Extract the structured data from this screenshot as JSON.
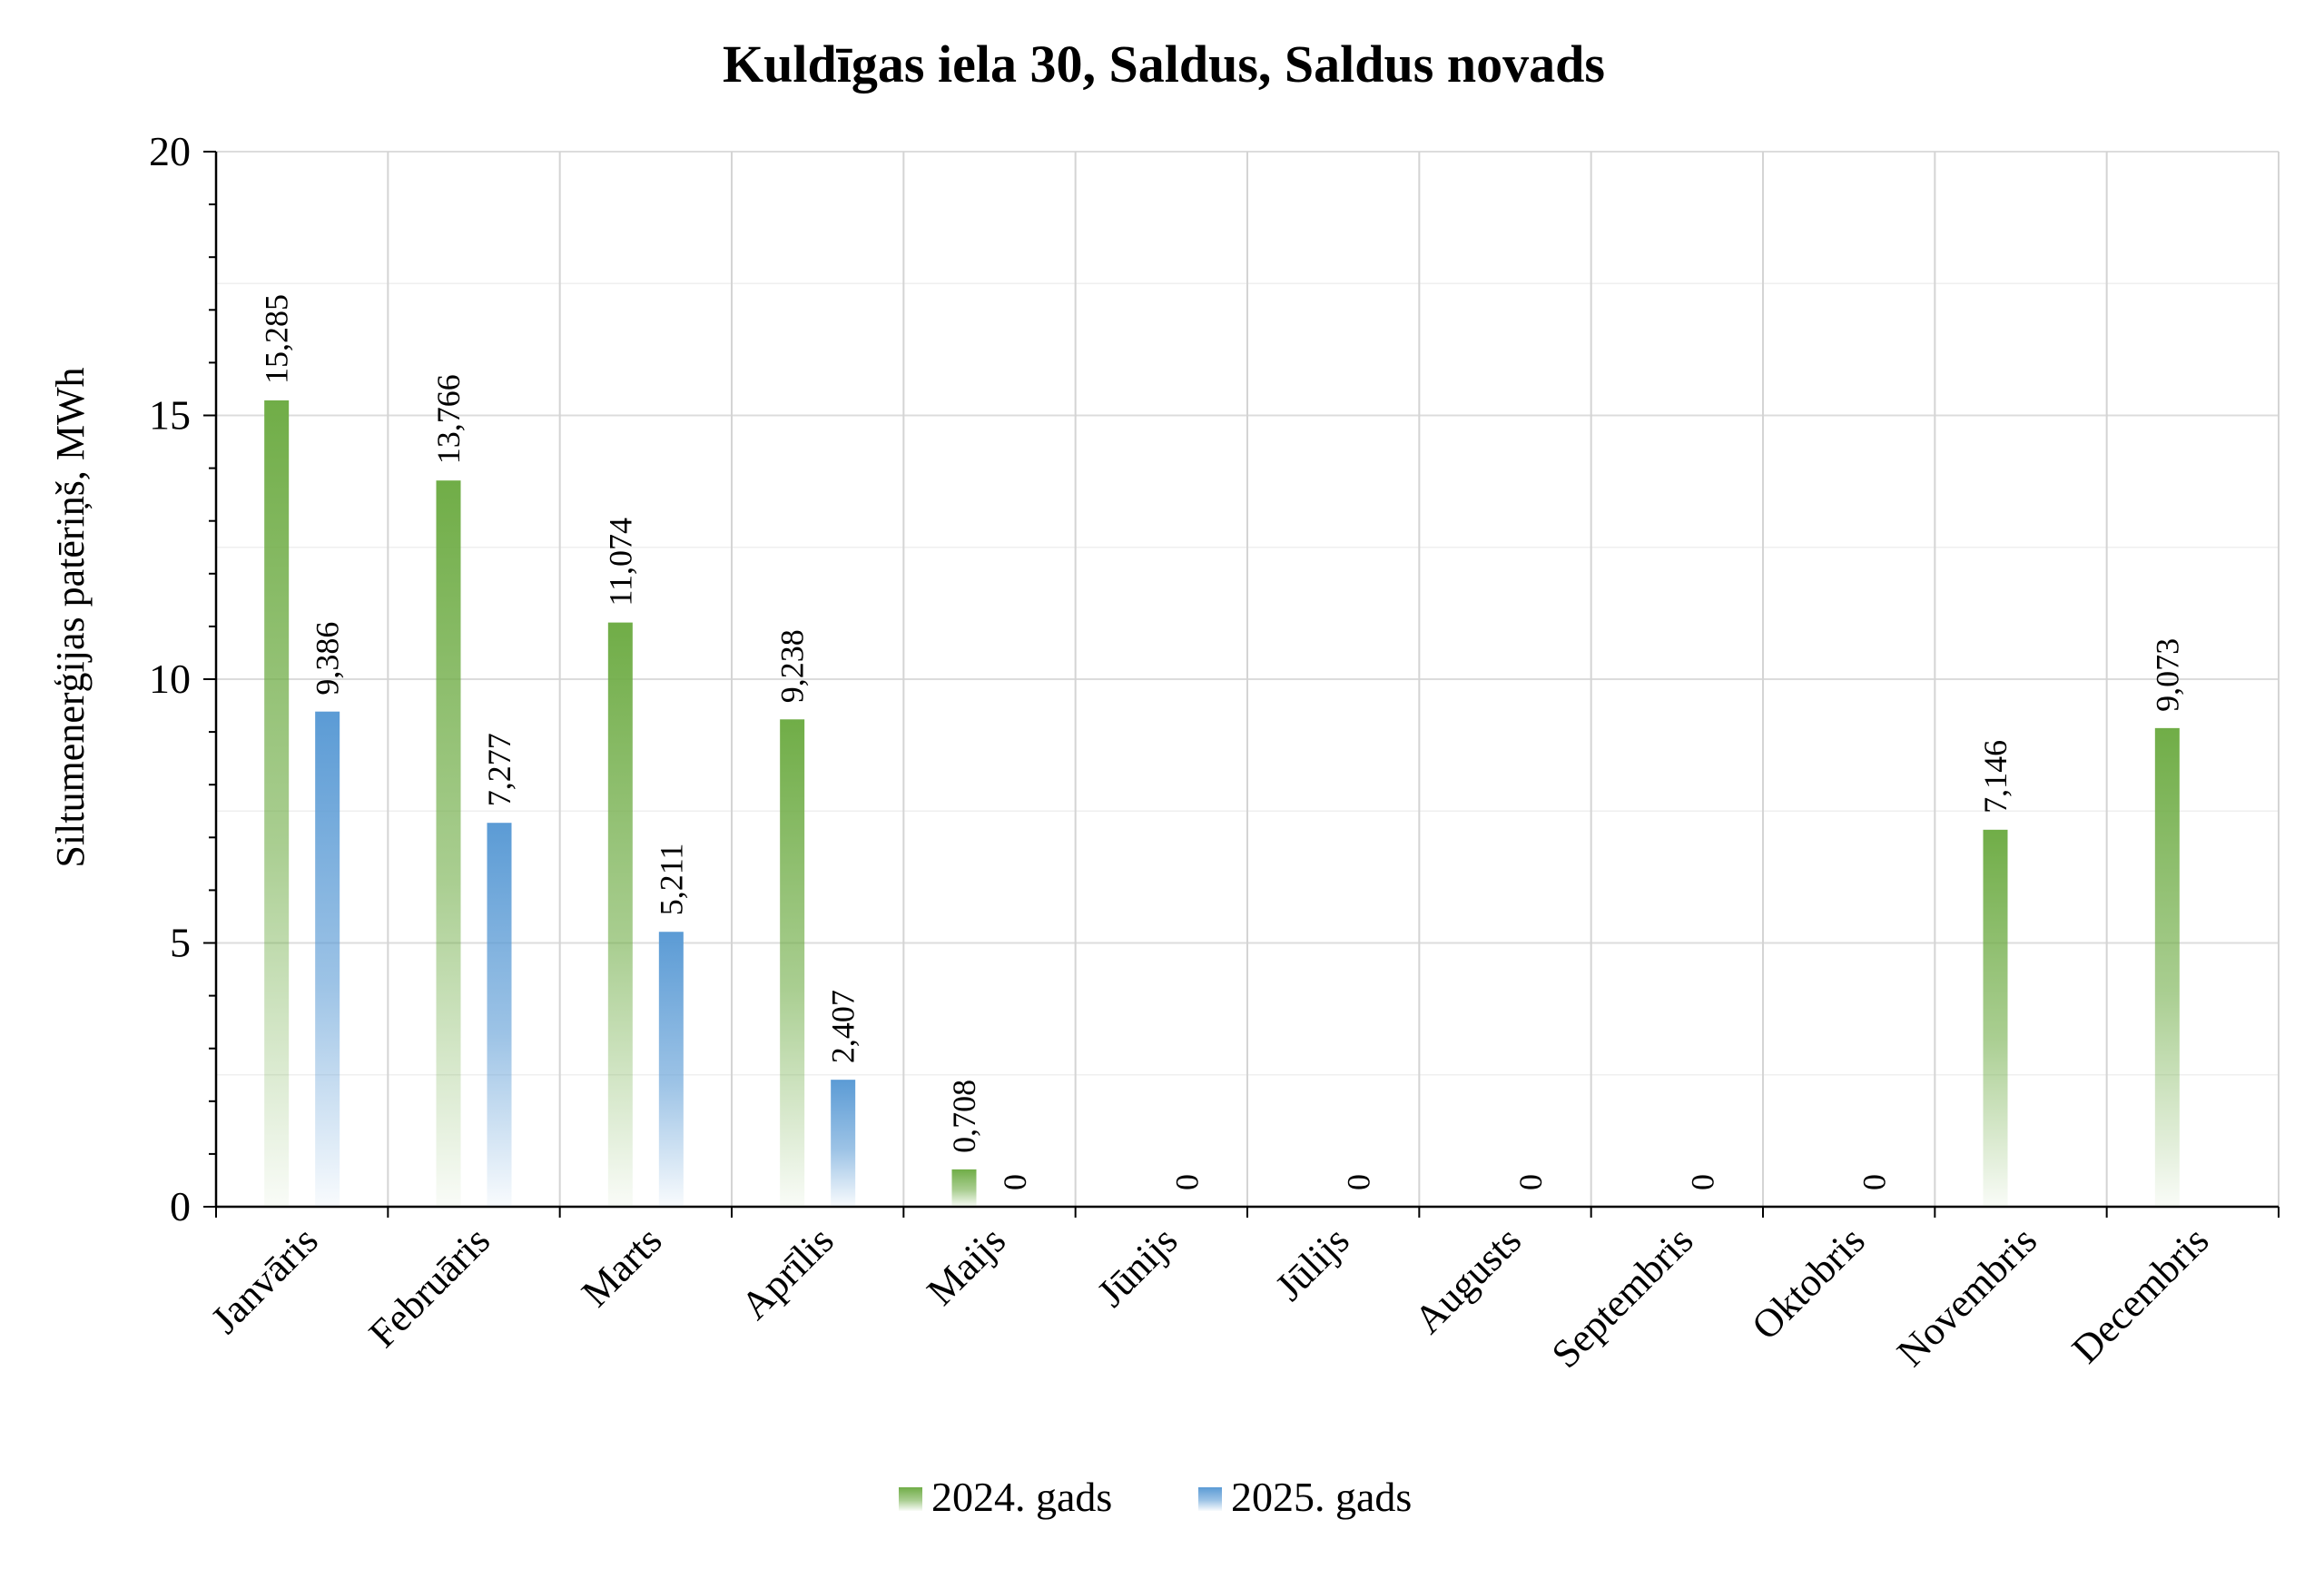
{
  "chart_data": {
    "type": "bar",
    "title": "Kuldīgas iela 30, Saldus, Saldus novads",
    "ylabel": "Siltumenerģijas patēriņš, MWh",
    "xlabel": "",
    "ylim": [
      0,
      20
    ],
    "yticks": [
      0,
      5,
      10,
      15,
      20
    ],
    "grid": true,
    "legend_position": "bottom",
    "categories": [
      "Janvāris",
      "Februāris",
      "Marts",
      "Aprīlis",
      "Maijs",
      "Jūnijs",
      "Jūlijs",
      "Augusts",
      "Septembris",
      "Oktobris",
      "Novembris",
      "Decembris"
    ],
    "series": [
      {
        "name": "2024. gads",
        "color": "#70ad47",
        "values": [
          15.285,
          13.766,
          11.074,
          9.238,
          0.708,
          null,
          null,
          null,
          null,
          null,
          7.146,
          9.073
        ],
        "labels": [
          "15,285",
          "13,766",
          "11,074",
          "9,238",
          "0,708",
          "",
          "",
          "",
          "",
          "",
          "7,146",
          "9,073"
        ]
      },
      {
        "name": "2025. gads",
        "color": "#5b9bd5",
        "values": [
          9.386,
          7.277,
          5.211,
          2.407,
          0,
          0,
          0,
          0,
          0,
          0,
          null,
          null
        ],
        "labels": [
          "9,386",
          "7,277",
          "5,211",
          "2,407",
          "0",
          "0",
          "0",
          "0",
          "0",
          "0",
          "",
          ""
        ]
      }
    ]
  }
}
